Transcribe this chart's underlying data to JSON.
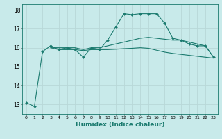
{
  "xlabel": "Humidex (Indice chaleur)",
  "background_color": "#c8eaea",
  "grid_color": "#b8d8d8",
  "line_color": "#1a7a6e",
  "x": [
    0,
    1,
    2,
    3,
    4,
    5,
    6,
    7,
    8,
    9,
    10,
    11,
    12,
    13,
    14,
    15,
    16,
    17,
    18,
    19,
    20,
    21,
    22,
    23
  ],
  "line1": [
    13.1,
    12.9,
    15.8,
    16.1,
    15.9,
    16.0,
    15.9,
    15.5,
    16.0,
    15.9,
    16.4,
    17.1,
    17.8,
    17.75,
    17.8,
    17.8,
    17.8,
    17.3,
    16.5,
    16.4,
    16.2,
    16.1,
    16.1,
    15.5
  ],
  "line2": [
    null,
    null,
    null,
    16.0,
    16.0,
    16.0,
    16.0,
    15.9,
    16.0,
    16.0,
    16.1,
    16.2,
    16.3,
    16.4,
    16.5,
    16.55,
    16.5,
    16.45,
    16.4,
    16.4,
    16.3,
    16.2,
    16.1,
    15.5
  ],
  "line3": [
    null,
    null,
    null,
    16.0,
    15.9,
    15.9,
    15.9,
    15.85,
    15.9,
    15.9,
    15.9,
    15.92,
    15.95,
    15.97,
    16.0,
    15.97,
    15.87,
    15.77,
    15.7,
    15.65,
    15.6,
    15.55,
    15.5,
    15.45
  ],
  "ylim": [
    12.5,
    18.3
  ],
  "yticks": [
    13,
    14,
    15,
    16,
    17,
    18
  ],
  "xlim": [
    -0.5,
    23.5
  ],
  "xticks": [
    0,
    1,
    2,
    3,
    4,
    5,
    6,
    7,
    8,
    9,
    10,
    11,
    12,
    13,
    14,
    15,
    16,
    17,
    18,
    19,
    20,
    21,
    22,
    23
  ]
}
